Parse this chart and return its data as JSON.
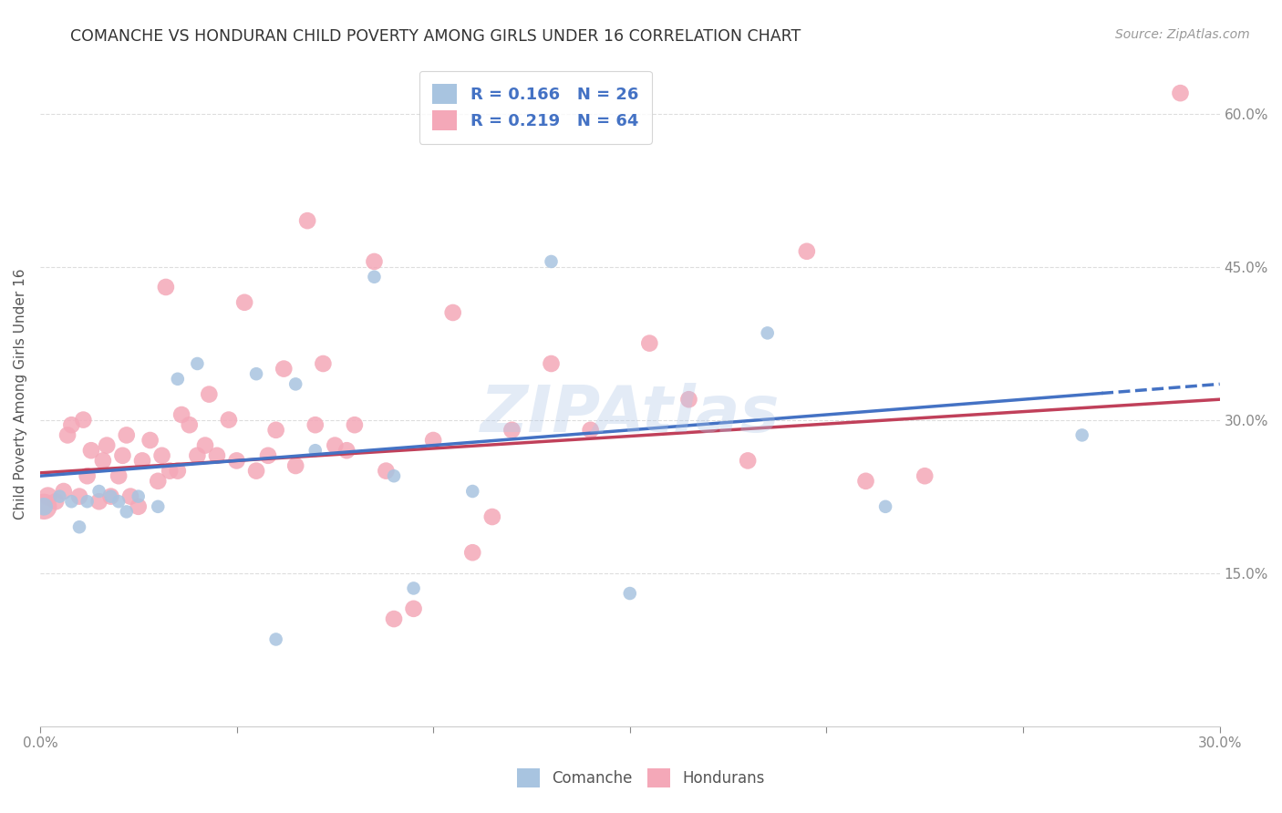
{
  "title": "COMANCHE VS HONDURAN CHILD POVERTY AMONG GIRLS UNDER 16 CORRELATION CHART",
  "source": "Source: ZipAtlas.com",
  "xlabel_label": "Comanche",
  "xlabel_label2": "Hondurans",
  "ylabel": "Child Poverty Among Girls Under 16",
  "xlim": [
    0.0,
    0.3
  ],
  "ylim": [
    0.0,
    0.65
  ],
  "xticks": [
    0.0,
    0.05,
    0.1,
    0.15,
    0.2,
    0.25,
    0.3
  ],
  "xticklabels": [
    "0.0%",
    "",
    "",
    "",
    "",
    "",
    "30.0%"
  ],
  "ytick_positions": [
    0.15,
    0.3,
    0.45,
    0.6
  ],
  "ytick_labels": [
    "15.0%",
    "30.0%",
    "45.0%",
    "60.0%"
  ],
  "R_comanche": 0.166,
  "N_comanche": 26,
  "R_honduran": 0.219,
  "N_honduran": 64,
  "comanche_color": "#a8c4e0",
  "honduran_color": "#f4a8b8",
  "trendline_comanche_color": "#4472c4",
  "trendline_honduran_color": "#c0405a",
  "watermark_text": "ZIPAtlas",
  "comanche_x": [
    0.001,
    0.005,
    0.008,
    0.01,
    0.012,
    0.015,
    0.018,
    0.02,
    0.022,
    0.025,
    0.03,
    0.035,
    0.04,
    0.055,
    0.06,
    0.065,
    0.07,
    0.085,
    0.09,
    0.095,
    0.11,
    0.13,
    0.15,
    0.185,
    0.215,
    0.265
  ],
  "comanche_y": [
    0.215,
    0.225,
    0.22,
    0.195,
    0.22,
    0.23,
    0.225,
    0.22,
    0.21,
    0.225,
    0.215,
    0.34,
    0.355,
    0.345,
    0.085,
    0.335,
    0.27,
    0.44,
    0.245,
    0.135,
    0.23,
    0.455,
    0.13,
    0.385,
    0.215,
    0.285
  ],
  "honduran_x": [
    0.001,
    0.002,
    0.004,
    0.006,
    0.007,
    0.008,
    0.01,
    0.011,
    0.012,
    0.013,
    0.015,
    0.016,
    0.017,
    0.018,
    0.02,
    0.021,
    0.022,
    0.023,
    0.025,
    0.026,
    0.028,
    0.03,
    0.031,
    0.032,
    0.033,
    0.035,
    0.036,
    0.038,
    0.04,
    0.042,
    0.043,
    0.045,
    0.048,
    0.05,
    0.052,
    0.055,
    0.058,
    0.06,
    0.062,
    0.065,
    0.068,
    0.07,
    0.072,
    0.075,
    0.078,
    0.08,
    0.085,
    0.088,
    0.09,
    0.095,
    0.1,
    0.105,
    0.11,
    0.115,
    0.12,
    0.13,
    0.14,
    0.155,
    0.165,
    0.18,
    0.195,
    0.21,
    0.225,
    0.29
  ],
  "honduran_y": [
    0.215,
    0.225,
    0.22,
    0.23,
    0.285,
    0.295,
    0.225,
    0.3,
    0.245,
    0.27,
    0.22,
    0.26,
    0.275,
    0.225,
    0.245,
    0.265,
    0.285,
    0.225,
    0.215,
    0.26,
    0.28,
    0.24,
    0.265,
    0.43,
    0.25,
    0.25,
    0.305,
    0.295,
    0.265,
    0.275,
    0.325,
    0.265,
    0.3,
    0.26,
    0.415,
    0.25,
    0.265,
    0.29,
    0.35,
    0.255,
    0.495,
    0.295,
    0.355,
    0.275,
    0.27,
    0.295,
    0.455,
    0.25,
    0.105,
    0.115,
    0.28,
    0.405,
    0.17,
    0.205,
    0.29,
    0.355,
    0.29,
    0.375,
    0.32,
    0.26,
    0.465,
    0.24,
    0.245,
    0.62
  ],
  "comanche_sizes": [
    200,
    110,
    110,
    110,
    110,
    110,
    110,
    110,
    110,
    110,
    110,
    110,
    110,
    110,
    110,
    110,
    110,
    110,
    110,
    110,
    110,
    110,
    110,
    110,
    110,
    110
  ],
  "honduran_sizes": [
    420,
    220,
    180,
    180,
    180,
    180,
    180,
    180,
    180,
    180,
    180,
    180,
    180,
    180,
    180,
    180,
    180,
    180,
    180,
    180,
    180,
    180,
    180,
    180,
    180,
    180,
    180,
    180,
    180,
    180,
    180,
    180,
    180,
    180,
    180,
    180,
    180,
    180,
    180,
    180,
    180,
    180,
    180,
    180,
    180,
    180,
    180,
    180,
    180,
    180,
    180,
    180,
    180,
    180,
    180,
    180,
    180,
    180,
    180,
    180,
    180,
    180,
    180,
    180
  ],
  "trendline_comanche_intercept": 0.245,
  "trendline_comanche_slope": 0.3,
  "trendline_honduran_intercept": 0.248,
  "trendline_honduran_slope": 0.24,
  "legend_facecolor": "#ffffff",
  "legend_edgecolor": "#cccccc",
  "background_color": "#ffffff",
  "grid_color": "#dddddd",
  "title_color": "#333333",
  "axis_label_color": "#555555",
  "tick_label_color": "#4472c4"
}
